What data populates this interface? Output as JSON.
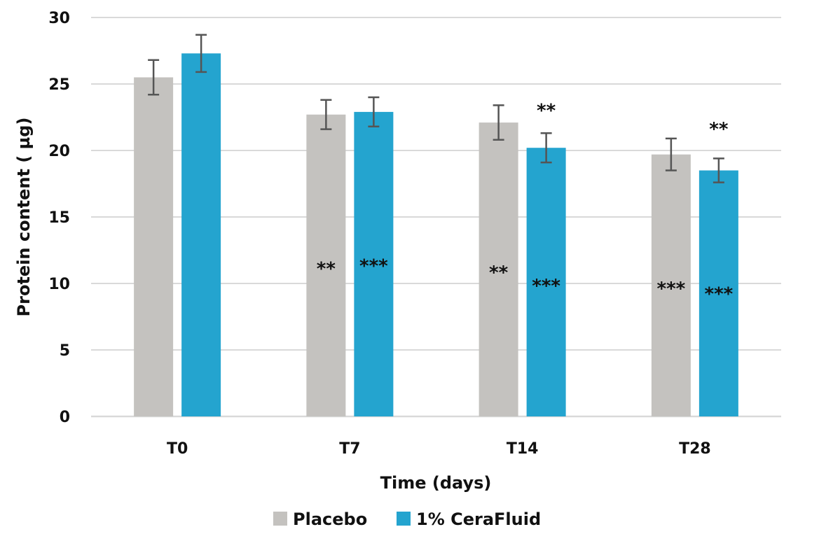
{
  "chart_data": {
    "type": "bar",
    "categories": [
      "T0",
      "T7",
      "T14",
      "T28"
    ],
    "series": [
      {
        "name": "Placebo",
        "color": "#c4c2bf",
        "values": [
          25.5,
          22.7,
          22.1,
          19.7
        ],
        "errors": [
          1.3,
          1.1,
          1.3,
          1.2
        ],
        "annotations": [
          {
            "text": "",
            "value": null
          },
          {
            "text": "**",
            "value": 11.4
          },
          {
            "text": "**",
            "value": 11.1
          },
          {
            "text": "***",
            "value": 9.9
          }
        ]
      },
      {
        "name": "1% CeraFluid",
        "color": "#24a4cf",
        "values": [
          27.3,
          22.9,
          20.2,
          18.5
        ],
        "errors": [
          1.4,
          1.1,
          1.1,
          0.9
        ],
        "annotations": [
          {
            "text": "",
            "value": null
          },
          {
            "text": "***",
            "value": 11.6
          },
          {
            "text": "***",
            "value": 10.1
          },
          {
            "text": "***",
            "value": 9.5
          }
        ]
      }
    ],
    "top_annotations": [
      {
        "category_index": 2,
        "text": "**",
        "value": 23.3
      },
      {
        "category_index": 3,
        "text": "**",
        "value": 21.9
      }
    ],
    "yticks": [
      0,
      5,
      10,
      15,
      20,
      25,
      30
    ],
    "ylim": [
      0,
      30
    ],
    "xlabel": "Time (days)",
    "ylabel": "Protein content ( µg)",
    "grid": true,
    "legend_position": "bottom"
  }
}
